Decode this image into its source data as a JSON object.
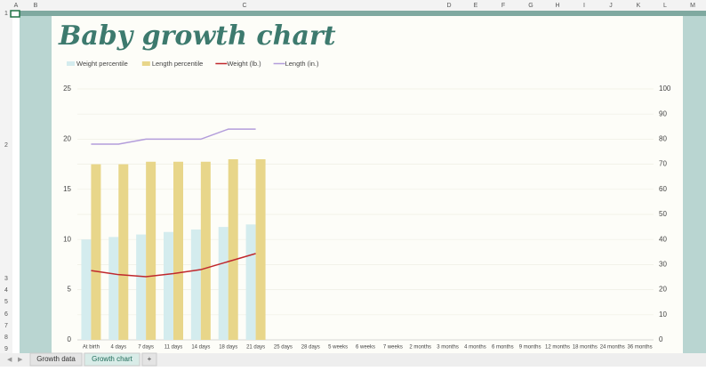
{
  "sheet": {
    "columns": [
      "A",
      "B",
      "C",
      "D",
      "E",
      "F",
      "G",
      "H",
      "I",
      "J",
      "K",
      "L",
      "M"
    ],
    "rows": [
      "1",
      "2",
      "3",
      "4",
      "5",
      "6",
      "7",
      "8",
      "9"
    ],
    "tabs": [
      "Growth data",
      "Growth chart",
      "+"
    ],
    "active_tab": 1
  },
  "chart_data": {
    "type": "bar",
    "title": "Baby growth chart",
    "legend": "top",
    "categories": [
      "At birth",
      "4 days",
      "7 days",
      "11 days",
      "14 days",
      "18 days",
      "21 days",
      "25 days",
      "28 days",
      "5 weeks",
      "6 weeks",
      "7 weeks",
      "2 months",
      "3 months",
      "4 months",
      "6 months",
      "9 months",
      "12 months",
      "18 months",
      "24 months",
      "36 months"
    ],
    "series": [
      {
        "name": "Weight percentile",
        "type": "bar",
        "axis": "y2",
        "color": "#d4ecee",
        "values": [
          40,
          41,
          42,
          43,
          44,
          45,
          46,
          null,
          null,
          null,
          null,
          null,
          null,
          null,
          null,
          null,
          null,
          null,
          null,
          null,
          null
        ]
      },
      {
        "name": "Length percentile",
        "type": "bar",
        "axis": "y2",
        "color": "#e8d68a",
        "values": [
          70,
          70,
          71,
          71,
          71,
          72,
          72,
          null,
          null,
          null,
          null,
          null,
          null,
          null,
          null,
          null,
          null,
          null,
          null,
          null,
          null
        ]
      },
      {
        "name": "Weight (lb.)",
        "type": "line",
        "color": "#c0282d",
        "values": [
          6.9,
          6.5,
          6.3,
          6.6,
          7.0,
          7.8,
          8.6,
          null,
          null,
          null,
          null,
          null,
          null,
          null,
          null,
          null,
          null,
          null,
          null,
          null,
          null
        ]
      },
      {
        "name": "Length (in.)",
        "type": "line",
        "color": "#b39ddb",
        "values": [
          19.5,
          19.5,
          20,
          20,
          20,
          21,
          21,
          null,
          null,
          null,
          null,
          null,
          null,
          null,
          null,
          null,
          null,
          null,
          null,
          null,
          null
        ]
      }
    ],
    "ylim": [
      0,
      25
    ],
    "yticks": [
      0,
      5,
      10,
      15,
      20,
      25
    ],
    "y2lim": [
      0,
      100
    ],
    "y2ticks": [
      0,
      10,
      20,
      30,
      40,
      50,
      60,
      70,
      80,
      90,
      100
    ],
    "grid": true
  }
}
